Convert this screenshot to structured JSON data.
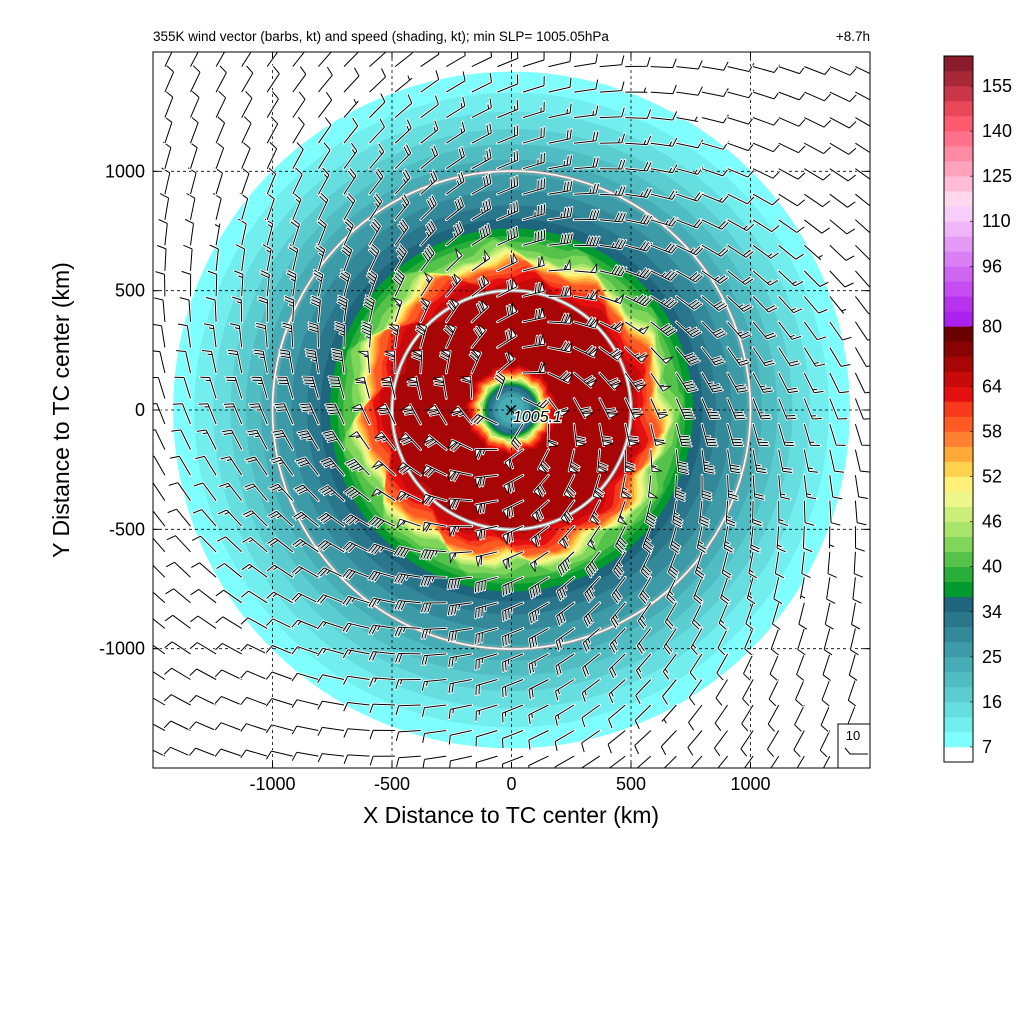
{
  "chart_data": {
    "type": "heatmap",
    "title": "355K wind vector (barbs, kt) and speed (shading, kt); min SLP= 1005.05hPa",
    "time_label": "+8.7h",
    "xlabel": "X Distance to TC center (km)",
    "ylabel": "Y Distance to TC center (km)",
    "xlim": [
      -1500,
      1500
    ],
    "ylim": [
      -1500,
      1500
    ],
    "x_ticks": [
      -1000,
      -500,
      0,
      500,
      1000
    ],
    "y_ticks": [
      -1000,
      -500,
      0,
      500,
      1000
    ],
    "x_tick_labels": [
      "-1000",
      "-500",
      "0",
      "500",
      "1000"
    ],
    "y_tick_labels": [
      "-1000",
      "-500",
      "0",
      "500",
      "1000"
    ],
    "grid": "dashed",
    "range_rings_km": [
      500,
      1000
    ],
    "center_marker": {
      "symbol": "×",
      "label": "1005.1",
      "x": 0,
      "y": 0
    },
    "reference_barb": {
      "label": "10",
      "speed_kt": 10
    },
    "colorbar": {
      "tick_labels": [
        "155",
        "140",
        "125",
        "110",
        "96",
        "80",
        "64",
        "58",
        "52",
        "46",
        "40",
        "34",
        "25",
        "16",
        "7"
      ],
      "levels_bottom_to_top": [
        7,
        10,
        13,
        16,
        19,
        22,
        25,
        28,
        31,
        34,
        36,
        38,
        40,
        42,
        44,
        46,
        48,
        50,
        52,
        54,
        56,
        58,
        60,
        62,
        64,
        68,
        72,
        76,
        80,
        84,
        88,
        92,
        96,
        100,
        105,
        110,
        115,
        120,
        125,
        130,
        135,
        140,
        145,
        150,
        155
      ],
      "colors_bottom_to_top": [
        "#ffffff",
        "#7fffff",
        "#72eeef",
        "#66dee0",
        "#5bcdd1",
        "#50bdc3",
        "#46acb5",
        "#3c9ba7",
        "#33899a",
        "#2a778c",
        "#1f657e",
        "#009a2e",
        "#2aae3a",
        "#55c24a",
        "#7fd65a",
        "#a8e56a",
        "#cdef7a",
        "#eef78a",
        "#fff07a",
        "#ffd24e",
        "#ffaa38",
        "#ff8030",
        "#ff5a24",
        "#f73a1c",
        "#e41010",
        "#c80a0a",
        "#a80606",
        "#880404",
        "#6a0202",
        "#aa22ee",
        "#b833ee",
        "#c44cf0",
        "#cf66f2",
        "#da80f4",
        "#e49bf6",
        "#efb5f8",
        "#f7cdfa",
        "#ffd8ee",
        "#ffbcd8",
        "#ffa2be",
        "#ff8aa4",
        "#ff728a",
        "#ff5a70",
        "#e84858",
        "#c83648",
        "#a82838",
        "#8a1c2c"
      ]
    },
    "wind_profile": [
      {
        "r_km": 0,
        "speed_kt": 20
      },
      {
        "r_km": 60,
        "speed_kt": 25
      },
      {
        "r_km": 110,
        "speed_kt": 36
      },
      {
        "r_km": 150,
        "speed_kt": 55
      },
      {
        "r_km": 190,
        "speed_kt": 68
      },
      {
        "r_km": 300,
        "speed_kt": 72
      },
      {
        "r_km": 480,
        "speed_kt": 70
      },
      {
        "r_km": 600,
        "speed_kt": 58
      },
      {
        "r_km": 660,
        "speed_kt": 44
      },
      {
        "r_km": 760,
        "speed_kt": 36
      },
      {
        "r_km": 880,
        "speed_kt": 30
      },
      {
        "r_km": 1050,
        "speed_kt": 22
      },
      {
        "r_km": 1250,
        "speed_kt": 13
      },
      {
        "r_km": 1420,
        "speed_kt": 7
      }
    ]
  }
}
